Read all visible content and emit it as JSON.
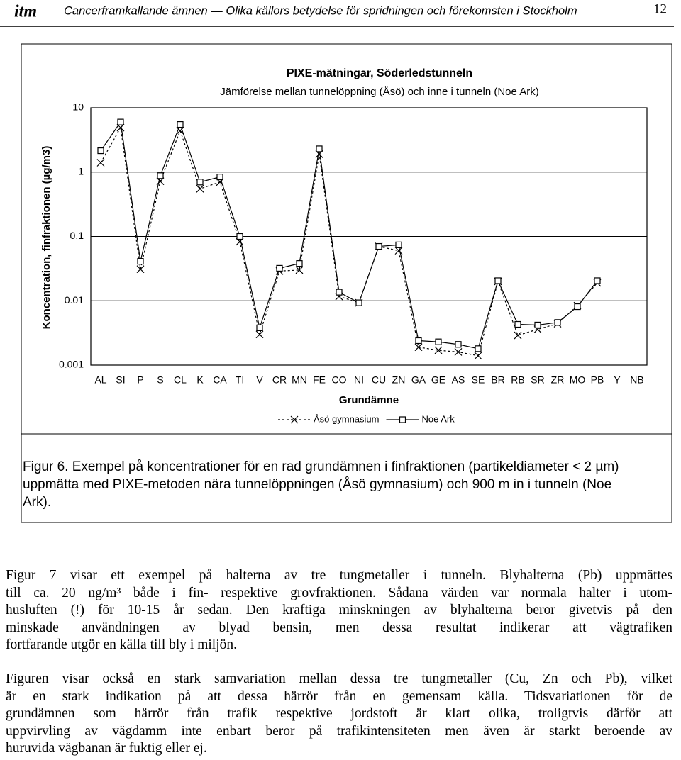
{
  "header": {
    "logo": "itm",
    "title": "Cancerframkallande ämnen — Olika källors betydelse för spridningen och förekomsten i Stockholm",
    "page": "12"
  },
  "chart_data": {
    "type": "line",
    "title": "PIXE-mätningar, Söderledstunneln",
    "subtitle": "Jämförelse mellan tunnelöppning (Åsö) och inne i tunneln (Noe Ark)",
    "x_label": "Grundämne",
    "y_label": "Koncentration, finfraktionen (µg/m3)",
    "categories": [
      "AL",
      "SI",
      "P",
      "S",
      "CL",
      "K",
      "CA",
      "TI",
      "V",
      "CR",
      "MN",
      "FE",
      "CO",
      "NI",
      "CU",
      "ZN",
      "GA",
      "GE",
      "AS",
      "SE",
      "BR",
      "RB",
      "SR",
      "ZR",
      "MO",
      "PB",
      "Y",
      "NB"
    ],
    "series": [
      {
        "name": "Åsö gymnasium",
        "color": "#000000",
        "values": [
          1.4,
          4.9,
          0.031,
          0.72,
          4.4,
          0.55,
          0.7,
          0.083,
          0.003,
          0.029,
          0.03,
          1.9,
          0.0117,
          0.0093,
          0.07,
          0.06,
          0.0019,
          0.0017,
          0.0016,
          0.0014,
          0.02,
          0.0029,
          0.0036,
          0.0044,
          0.0084,
          0.019,
          null,
          null
        ]
      },
      {
        "name": "Noe Ark",
        "color": "#000000",
        "values": [
          2.15,
          6.0,
          0.041,
          0.88,
          5.5,
          0.7,
          0.84,
          0.1,
          0.0038,
          0.032,
          0.038,
          2.3,
          0.0136,
          0.0093,
          0.07,
          0.074,
          0.0024,
          0.0023,
          0.0021,
          0.0018,
          0.0205,
          0.0043,
          0.0042,
          0.0046,
          0.0081,
          0.0205,
          null,
          null
        ]
      }
    ],
    "ylim": [
      0.001,
      10
    ],
    "yticks": [
      0.001,
      0.01,
      0.1,
      1,
      10
    ],
    "yscale": "log",
    "grid": true,
    "legend": "bottom"
  },
  "caption": [
    "Figur 6. Exempel på koncentrationer för en rad grundämnen i finfraktionen (partikeldiameter < 2 µm)",
    "uppmätta med PIXE-metoden nära tunnelöppningen (Åsö gymnasium) och 900 m in i tunneln (Noe",
    "Ark)."
  ],
  "paragraphs": [
    [
      "Figur 7 visar ett exempel på halterna av tre tungmetaller i tunneln. Blyhalterna (Pb) uppmättes",
      "till ca. 20 ng/m³ både i fin- respektive grovfraktionen. Sådana värden var normala halter i utom-",
      "husluften (!) för 10-15 år sedan. Den kraftiga minskningen av blyhalterna beror givetvis på den",
      "minskade användningen av blyad bensin, men dessa resultat indikerar att vägtrafiken",
      "fortfarande utgör en källa till bly i miljön."
    ],
    [
      "Figuren visar också en stark samvariation mellan dessa tre tungmetaller (Cu, Zn och Pb), vilket",
      "är en stark indikation på att dessa härrör från en gemensam källa. Tidsvariationen för de",
      "grundämnen som härrör från trafik respektive jordstoft är klart olika, troligtvis därför att",
      "uppvirvling av vägdamm inte enbart beror på trafikintensiteten men även är starkt beroende av",
      "huruvida vägbanan är fuktig eller ej."
    ]
  ]
}
